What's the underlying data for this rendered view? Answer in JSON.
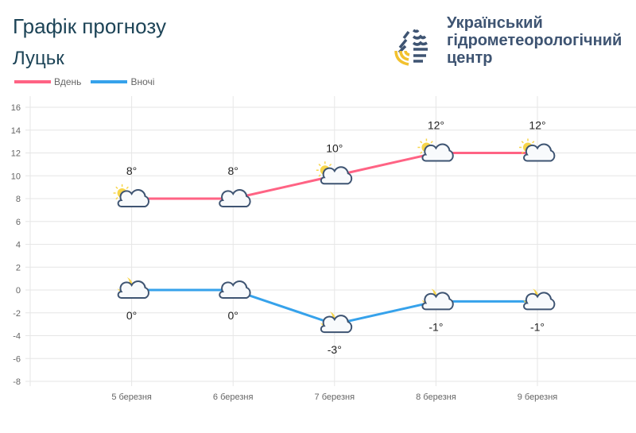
{
  "header": {
    "title": "Графік прогнозу",
    "city": "Луцьк"
  },
  "logo": {
    "org_name": "Український гідрометеорологічний центр",
    "lines": [
      "Український",
      "гідрометеорологічний",
      "центр"
    ]
  },
  "chart_data": {
    "type": "line",
    "categories": [
      "5 березня",
      "6 березня",
      "7 березня",
      "8 березня",
      "9 березня"
    ],
    "series": [
      {
        "name": "Вдень",
        "color": "#ff6384",
        "values": [
          8,
          8,
          10,
          12,
          12
        ],
        "labels": [
          "8°",
          "8°",
          "10°",
          "12°",
          "12°"
        ],
        "icons": [
          "sun-cloud",
          "cloud",
          "sun-cloud",
          "sun-cloud",
          "sun-cloud"
        ]
      },
      {
        "name": "Вночі",
        "color": "#36a2eb",
        "values": [
          0,
          0,
          -3,
          -1,
          -1
        ],
        "labels": [
          "0°",
          "0°",
          "-3°",
          "-1°",
          "-1°"
        ],
        "icons": [
          "moon-cloud",
          "cloud",
          "moon-cloud",
          "moon-cloud",
          "moon-cloud"
        ]
      }
    ],
    "ylim": [
      -8,
      16
    ],
    "yticks": [
      16,
      14,
      12,
      10,
      8,
      6,
      4,
      2,
      0,
      -2,
      -4,
      -6,
      -8
    ],
    "grid": true,
    "legend": "top-left"
  }
}
